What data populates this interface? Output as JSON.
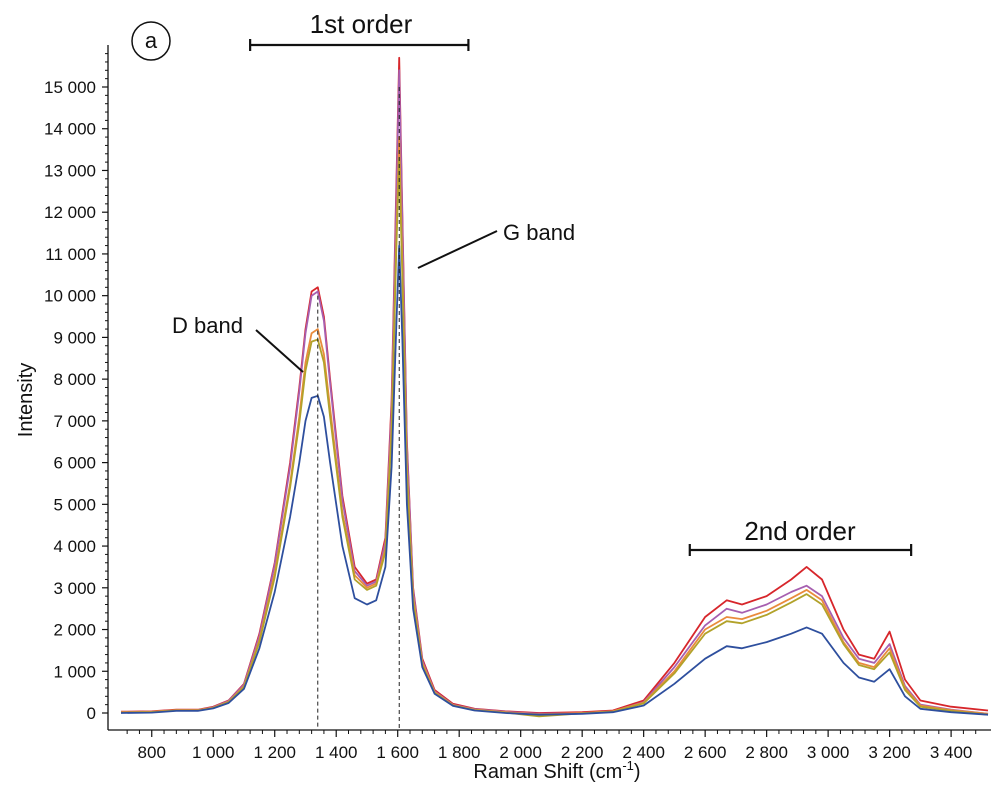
{
  "chart_data": {
    "type": "line",
    "panel_label": "a",
    "xlabel": "Raman Shift (cm",
    "xlabel_sup": "-1",
    "xlabel_end": ")",
    "ylabel": "Intensity",
    "xlim": [
      700,
      3520
    ],
    "ylim": [
      -200,
      16000
    ],
    "x_ticks": [
      800,
      1000,
      1200,
      1400,
      1600,
      1800,
      2000,
      2200,
      2400,
      2600,
      2800,
      3000,
      3200,
      3400
    ],
    "x_tick_labels": [
      "800",
      "1 000",
      "1 200",
      "1 400",
      "1 600",
      "1 800",
      "2 000",
      "2 200",
      "2 400",
      "2 600",
      "2 800",
      "3 000",
      "3 200",
      "3 400"
    ],
    "y_ticks": [
      0,
      1000,
      2000,
      3000,
      4000,
      5000,
      6000,
      7000,
      8000,
      9000,
      10000,
      11000,
      12000,
      13000,
      14000,
      15000
    ],
    "y_tick_labels": [
      "0",
      "1 000",
      "2 000",
      "3 000",
      "4 000",
      "5 000",
      "6 000",
      "7 000",
      "8 000",
      "9 000",
      "10 000",
      "11 000",
      "12 000",
      "13 000",
      "14 000",
      "15 000"
    ],
    "grid": false,
    "annotations": {
      "d_band": {
        "text": "D band",
        "x": 1340
      },
      "g_band": {
        "text": "G band",
        "x": 1605
      },
      "first_order": {
        "text": "1st order",
        "x_range": [
          1120,
          1830
        ]
      },
      "second_order": {
        "text": "2nd order",
        "x_range": [
          2550,
          3270
        ]
      }
    },
    "series": [
      {
        "color": "#d7262b",
        "x": [
          700,
          800,
          880,
          950,
          1000,
          1050,
          1100,
          1150,
          1200,
          1250,
          1280,
          1300,
          1320,
          1340,
          1360,
          1380,
          1420,
          1460,
          1500,
          1530,
          1560,
          1580,
          1595,
          1605,
          1615,
          1630,
          1650,
          1680,
          1720,
          1780,
          1850,
          1950,
          2060,
          2200,
          2300,
          2400,
          2500,
          2600,
          2670,
          2720,
          2800,
          2880,
          2930,
          2980,
          3050,
          3100,
          3150,
          3200,
          3250,
          3300,
          3400,
          3520
        ],
        "y": [
          30,
          40,
          80,
          80,
          150,
          300,
          700,
          1900,
          3600,
          6000,
          7800,
          9200,
          10100,
          10200,
          9500,
          8000,
          5200,
          3500,
          3100,
          3200,
          4200,
          7500,
          12500,
          15700,
          12000,
          6500,
          3000,
          1300,
          550,
          220,
          100,
          40,
          0,
          20,
          60,
          300,
          1200,
          2300,
          2700,
          2600,
          2800,
          3200,
          3500,
          3200,
          2000,
          1400,
          1300,
          1950,
          800,
          300,
          150,
          60
        ]
      },
      {
        "color": "#a65fb0",
        "x": [
          700,
          800,
          880,
          950,
          1000,
          1050,
          1100,
          1150,
          1200,
          1250,
          1280,
          1300,
          1320,
          1340,
          1360,
          1380,
          1420,
          1460,
          1500,
          1530,
          1560,
          1580,
          1595,
          1605,
          1615,
          1630,
          1650,
          1680,
          1720,
          1780,
          1850,
          1950,
          2060,
          2200,
          2300,
          2400,
          2500,
          2600,
          2670,
          2720,
          2800,
          2880,
          2930,
          2980,
          3050,
          3100,
          3150,
          3200,
          3250,
          3300,
          3400,
          3520
        ],
        "y": [
          20,
          30,
          70,
          70,
          140,
          290,
          680,
          1850,
          3550,
          5900,
          7700,
          9100,
          10000,
          10100,
          9400,
          7900,
          5100,
          3400,
          3050,
          3150,
          4100,
          7300,
          12200,
          15400,
          11800,
          6400,
          2950,
          1250,
          520,
          200,
          90,
          30,
          -20,
          0,
          40,
          260,
          1100,
          2100,
          2500,
          2400,
          2600,
          2900,
          3050,
          2800,
          1800,
          1300,
          1200,
          1650,
          650,
          200,
          80,
          -20
        ]
      },
      {
        "color": "#e98b3c",
        "x": [
          700,
          800,
          880,
          950,
          1000,
          1050,
          1100,
          1150,
          1200,
          1250,
          1280,
          1300,
          1320,
          1340,
          1360,
          1380,
          1420,
          1460,
          1500,
          1530,
          1560,
          1580,
          1595,
          1605,
          1615,
          1630,
          1650,
          1680,
          1720,
          1780,
          1850,
          1950,
          2060,
          2200,
          2300,
          2400,
          2500,
          2600,
          2670,
          2720,
          2800,
          2880,
          2930,
          2980,
          3050,
          3100,
          3150,
          3200,
          3250,
          3300,
          3400,
          3520
        ],
        "y": [
          20,
          30,
          70,
          70,
          130,
          270,
          640,
          1750,
          3350,
          5500,
          7100,
          8400,
          9100,
          9200,
          8600,
          7300,
          4800,
          3300,
          3000,
          3100,
          3950,
          6900,
          11300,
          13800,
          10800,
          5900,
          2800,
          1200,
          500,
          190,
          80,
          20,
          -30,
          0,
          40,
          250,
          1000,
          2000,
          2300,
          2250,
          2450,
          2750,
          2950,
          2700,
          1700,
          1200,
          1100,
          1550,
          600,
          180,
          70,
          -20
        ]
      },
      {
        "color": "#b2a22a",
        "x": [
          700,
          800,
          880,
          950,
          1000,
          1050,
          1100,
          1150,
          1200,
          1250,
          1280,
          1300,
          1320,
          1340,
          1360,
          1380,
          1420,
          1460,
          1500,
          1530,
          1560,
          1580,
          1595,
          1605,
          1615,
          1630,
          1650,
          1680,
          1720,
          1780,
          1850,
          1950,
          2060,
          2200,
          2300,
          2400,
          2500,
          2600,
          2670,
          2720,
          2800,
          2880,
          2930,
          2980,
          3050,
          3100,
          3150,
          3200,
          3250,
          3300,
          3400,
          3520
        ],
        "y": [
          10,
          20,
          60,
          60,
          120,
          260,
          620,
          1700,
          3250,
          5400,
          6950,
          8200,
          8900,
          8950,
          8400,
          7100,
          4700,
          3200,
          2950,
          3050,
          3850,
          6700,
          11000,
          13300,
          10500,
          5700,
          2700,
          1150,
          480,
          180,
          70,
          10,
          -80,
          -10,
          30,
          230,
          950,
          1900,
          2200,
          2150,
          2350,
          2650,
          2850,
          2600,
          1650,
          1150,
          1050,
          1450,
          550,
          150,
          50,
          -40
        ]
      },
      {
        "color": "#2e4f9e",
        "x": [
          700,
          800,
          880,
          950,
          1000,
          1050,
          1100,
          1150,
          1200,
          1250,
          1280,
          1300,
          1320,
          1340,
          1360,
          1380,
          1420,
          1460,
          1500,
          1530,
          1560,
          1580,
          1595,
          1605,
          1615,
          1630,
          1650,
          1680,
          1720,
          1780,
          1850,
          1950,
          2060,
          2200,
          2300,
          2400,
          2500,
          2600,
          2670,
          2720,
          2800,
          2880,
          2930,
          2980,
          3050,
          3100,
          3150,
          3200,
          3250,
          3300,
          3400,
          3520
        ],
        "y": [
          0,
          10,
          50,
          50,
          110,
          240,
          580,
          1550,
          2900,
          4700,
          6000,
          7000,
          7550,
          7600,
          7100,
          6000,
          4000,
          2750,
          2600,
          2700,
          3500,
          5900,
          9200,
          11200,
          9000,
          5000,
          2500,
          1100,
          460,
          170,
          60,
          0,
          -40,
          -20,
          20,
          180,
          700,
          1300,
          1600,
          1550,
          1700,
          1900,
          2050,
          1900,
          1200,
          850,
          750,
          1050,
          400,
          100,
          20,
          -40
        ]
      }
    ]
  }
}
